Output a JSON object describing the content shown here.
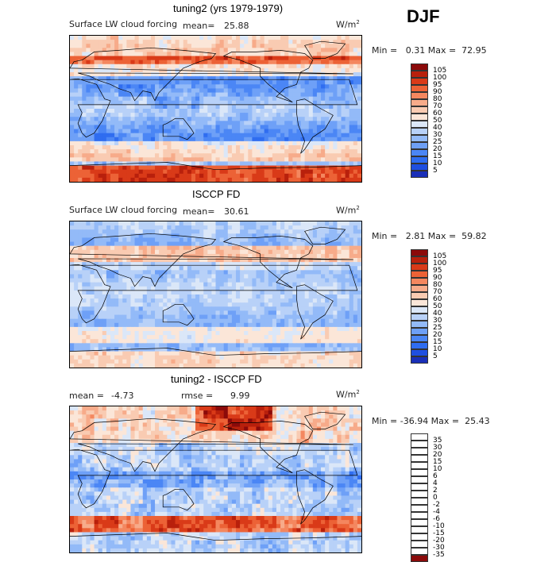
{
  "season": "DJF",
  "colors": {
    "abs_scale": [
      "#0a0a7a",
      "#1a2fb8",
      "#1f4fe0",
      "#2f6df0",
      "#4b86f5",
      "#6ea0f7",
      "#93baf8",
      "#b8d1f8",
      "#dbe7f8",
      "#fbe6d8",
      "#f9cbb2",
      "#f7ab8a",
      "#f4875f",
      "#ec6236",
      "#d93a18",
      "#b8200c",
      "#8b0a0a"
    ],
    "diff_scale": [
      "#0a0a7a",
      "#1a2fb8",
      "#1f4fe0",
      "#2f6df0",
      "#4b86f5",
      "#6ea0f7",
      "#93baf8",
      "#b8d1f8",
      "#dbe7f8",
      "#fbe6d8",
      "#f9cbb2",
      "#f7ab8a",
      "#f4875f",
      "#ec6236",
      "#d93a18",
      "#b8200c",
      "#8b0a0a"
    ]
  },
  "chart_data": [
    {
      "type": "heatmap",
      "title": "tuning2 (yrs 1979-1979)",
      "variable": "Surface LW cloud forcing",
      "mean_label": "mean=",
      "mean": "25.88",
      "units": "W/m",
      "units_exp": "2",
      "stats": "Min =   0.31 Max =  72.95",
      "min": 0.31,
      "max": 72.95,
      "colorbar_levels": [
        "105",
        "100",
        "95",
        "90",
        "80",
        "70",
        "60",
        "50",
        "40",
        "30",
        "25",
        "20",
        "15",
        "10",
        "5"
      ]
    },
    {
      "type": "heatmap",
      "title": "ISCCP FD",
      "variable": "Surface LW cloud forcing",
      "mean_label": "mean=",
      "mean": "30.61",
      "units": "W/m",
      "units_exp": "2",
      "stats": "Min =   2.81 Max =  59.82",
      "min": 2.81,
      "max": 59.82,
      "colorbar_levels": [
        "105",
        "100",
        "95",
        "90",
        "80",
        "70",
        "60",
        "50",
        "40",
        "30",
        "25",
        "20",
        "15",
        "10",
        "5"
      ]
    },
    {
      "type": "heatmap",
      "title": "tuning2 - ISCCP FD",
      "mean_label": "mean =",
      "mean": "-4.73",
      "rmse_label": "rmse =",
      "rmse": "9.99",
      "units": "W/m",
      "units_exp": "2",
      "stats": "Min = -36.94 Max =  25.43",
      "min": -36.94,
      "max": 25.43,
      "colorbar_levels": [
        "35",
        "30",
        "20",
        "15",
        "10",
        "6",
        "4",
        "2",
        "0",
        "-2",
        "-4",
        "-6",
        "-10",
        "-15",
        "-20",
        "-30",
        "-35"
      ]
    }
  ]
}
